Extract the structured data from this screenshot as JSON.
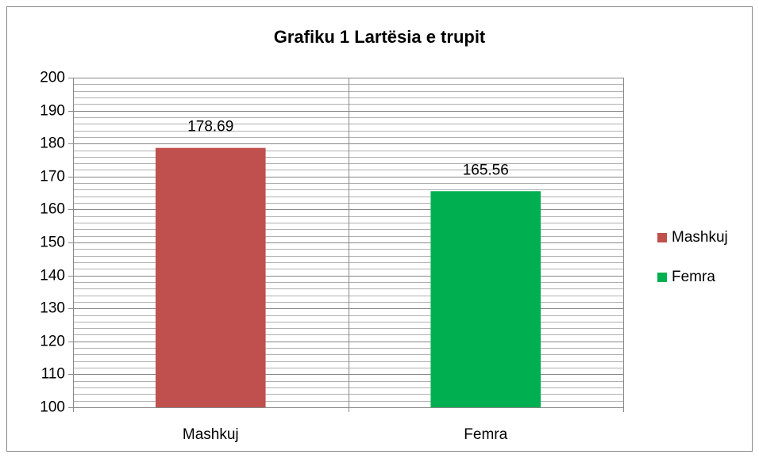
{
  "chart_data": {
    "type": "bar",
    "title": "Grafiku 1 Lartësia e trupit",
    "categories": [
      "Mashkuj",
      "Femra"
    ],
    "values": [
      178.69,
      165.56
    ],
    "colors": [
      "#c0504d",
      "#00b050"
    ],
    "ylim": [
      100,
      200
    ],
    "yticks": [
      100,
      110,
      120,
      130,
      140,
      150,
      160,
      170,
      180,
      190,
      200
    ],
    "grid": true,
    "minor_grid_step": 2,
    "legend": "right"
  }
}
